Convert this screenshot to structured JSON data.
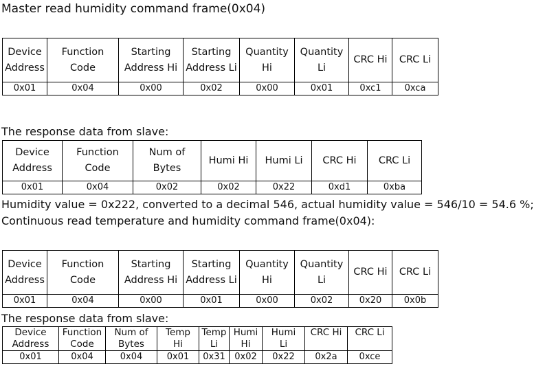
{
  "title": "Master read humidity command frame(0x04)",
  "table1": {
    "headers": [
      [
        "Device",
        "Address"
      ],
      [
        "Function",
        "Code"
      ],
      [
        "Starting",
        "Address Hi"
      ],
      [
        "Starting",
        "Address Li"
      ],
      [
        "Quantity",
        "Hi"
      ],
      [
        "Quantity",
        "Li"
      ],
      [
        "CRC Hi"
      ],
      [
        "CRC Li"
      ]
    ],
    "row": [
      "0x01",
      "0x04",
      "0x00",
      "0x02",
      "0x00",
      "0x01",
      "0xc1",
      "0xca"
    ]
  },
  "response_label_1": "The response data from slave:",
  "table2": {
    "headers": [
      [
        "Device",
        "Address"
      ],
      [
        "Function",
        "Code"
      ],
      [
        "Num of",
        "Bytes"
      ],
      [
        "Humi Hi"
      ],
      [
        "Humi Li"
      ],
      [
        "CRC Hi"
      ],
      [
        "CRC Li"
      ]
    ],
    "row": [
      "0x01",
      "0x04",
      "0x02",
      "0x02",
      "0x22",
      "0xd1",
      "0xba"
    ]
  },
  "note": "Humidity value = 0x222, converted to a decimal 546, actual humidity value = 546/10 = 54.6 %;",
  "subtitle": "Continuous read temperature and humidity command frame(0x04):",
  "table3": {
    "headers": [
      [
        "Device",
        "Address"
      ],
      [
        "Function",
        "Code"
      ],
      [
        "Starting",
        "Address Hi"
      ],
      [
        "Starting",
        "Address Li"
      ],
      [
        "Quantity",
        "Hi"
      ],
      [
        "Quantity",
        "Li"
      ],
      [
        "CRC Hi"
      ],
      [
        "CRC Li"
      ]
    ],
    "row": [
      "0x01",
      "0x04",
      "0x00",
      "0x01",
      "0x00",
      "0x02",
      "0x20",
      "0x0b"
    ]
  },
  "response_label_2": "The response data from slave:",
  "table4": {
    "headers": [
      [
        "Device",
        "Address"
      ],
      [
        "Function",
        "Code"
      ],
      [
        "Num of",
        "Bytes"
      ],
      [
        "Temp",
        "Hi"
      ],
      [
        "Temp",
        "Li"
      ],
      [
        "Humi",
        "Hi"
      ],
      [
        "Humi",
        "Li"
      ],
      [
        "CRC Hi"
      ],
      [
        "CRC Li"
      ]
    ],
    "row": [
      "0x01",
      "0x04",
      "0x04",
      "0x01",
      "0x31",
      "0x02",
      "0x22",
      "0x2a",
      "0xce"
    ]
  }
}
